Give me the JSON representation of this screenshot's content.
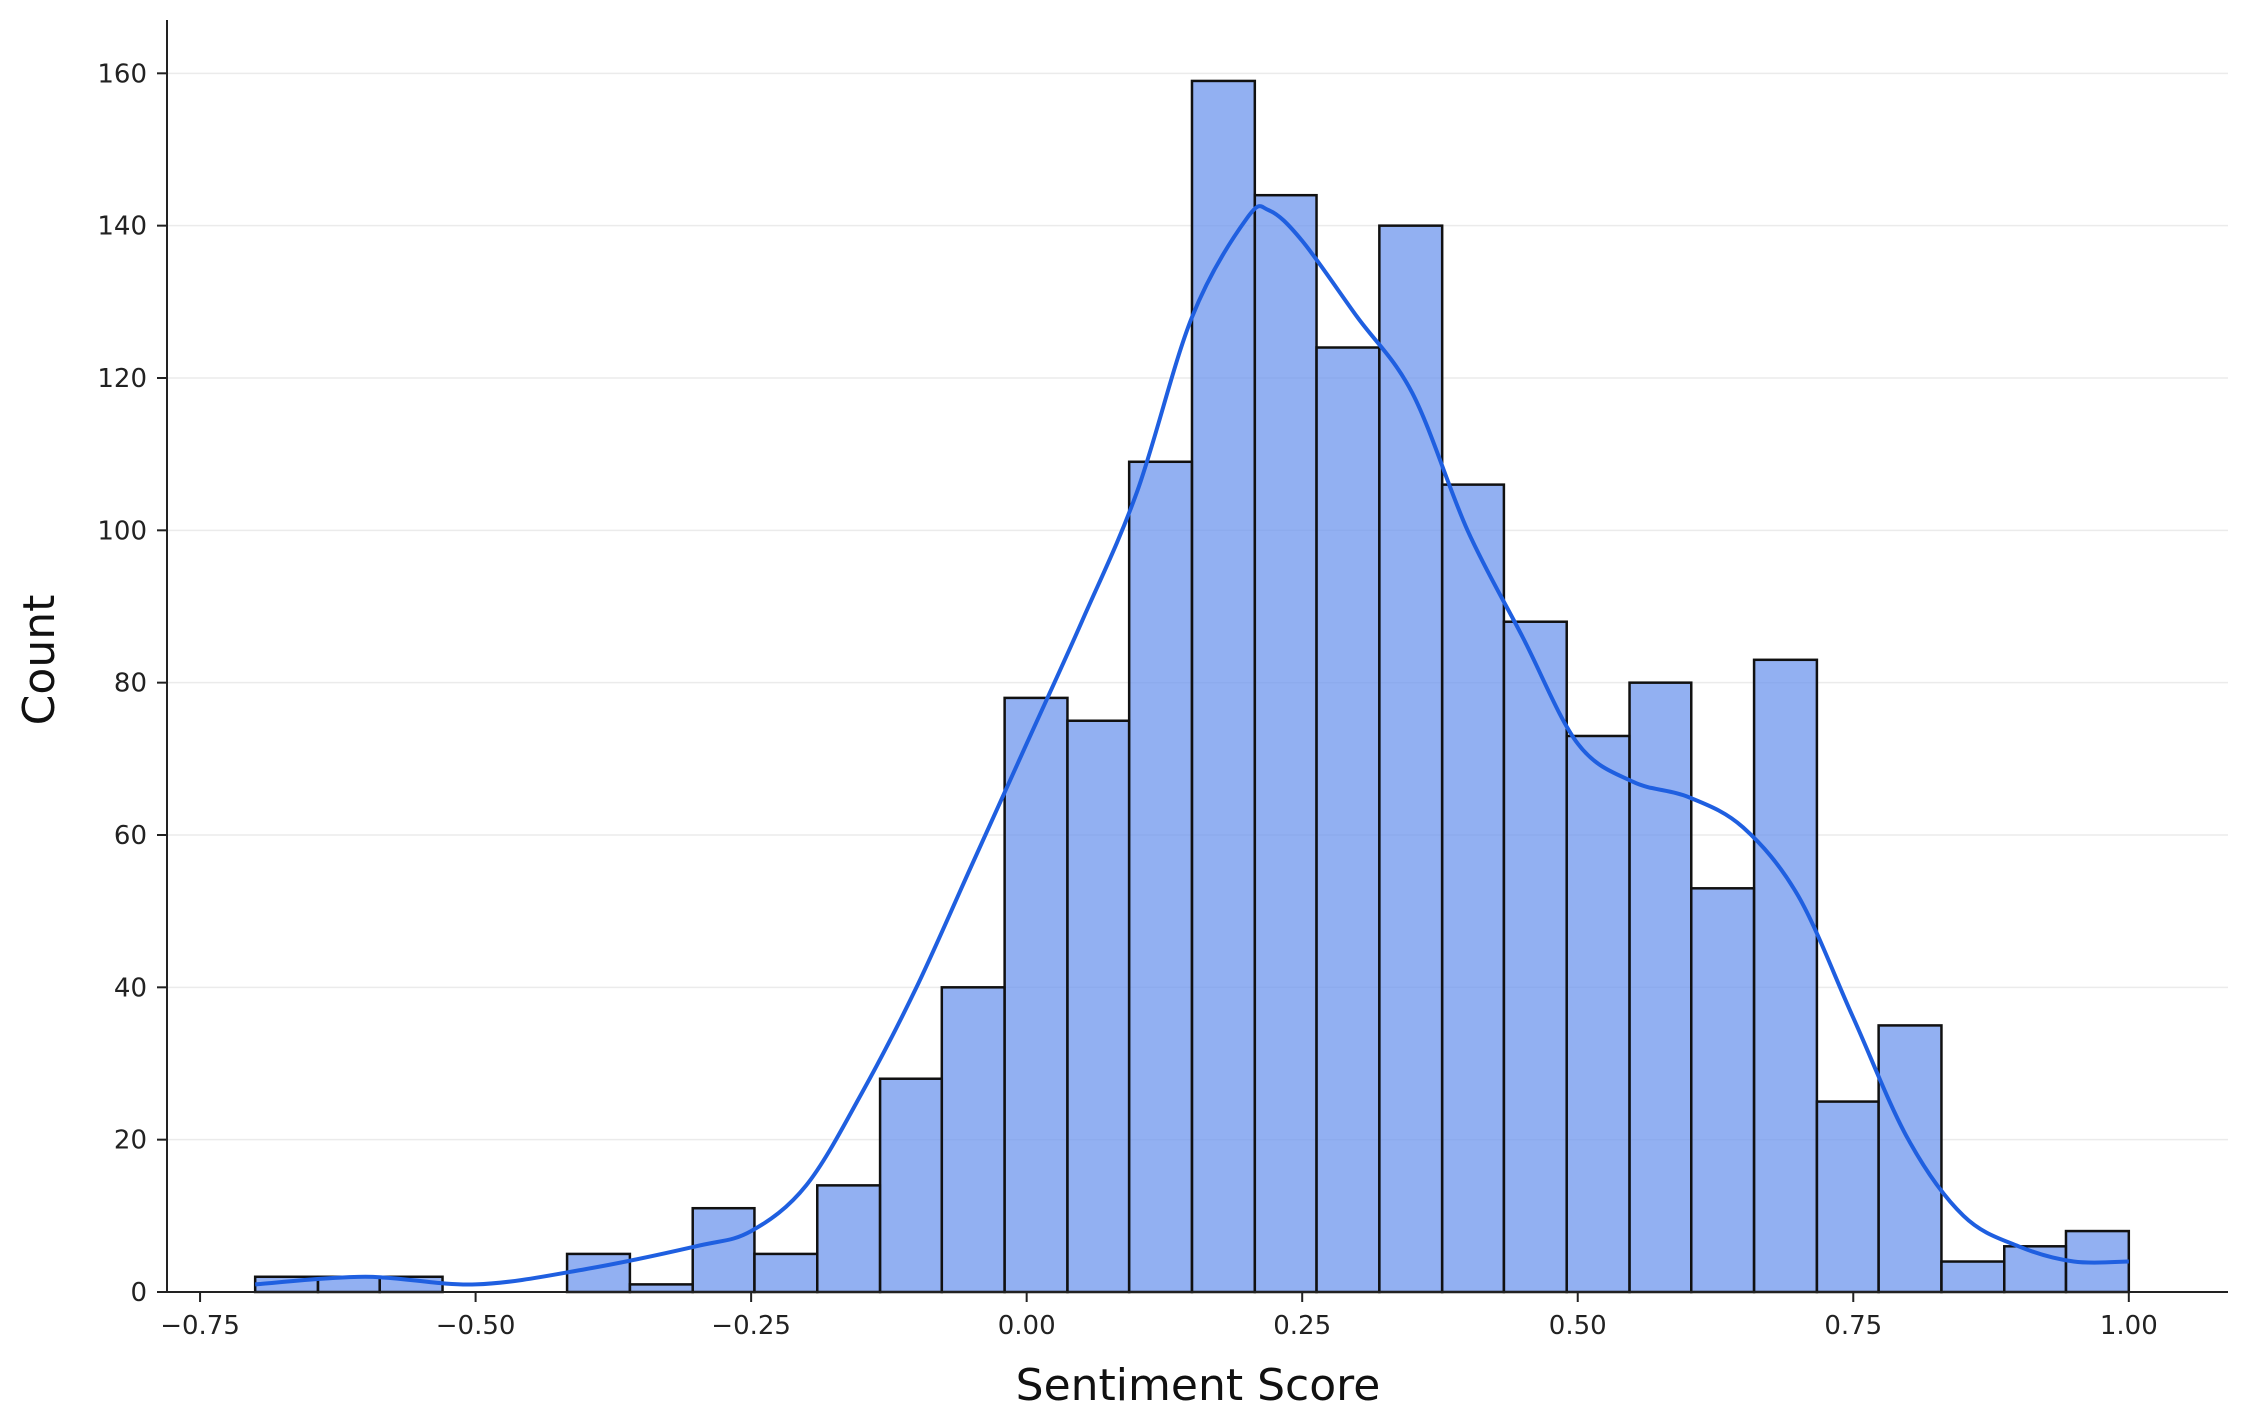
{
  "chart_data": {
    "type": "bar",
    "subtype": "histogram-with-kde",
    "title": "",
    "xlabel": "Sentiment Score",
    "ylabel": "Count",
    "xlim": [
      -0.78,
      1.09
    ],
    "ylim": [
      0,
      167
    ],
    "x_ticks": [
      -0.75,
      -0.5,
      -0.25,
      0.0,
      0.25,
      0.5,
      0.75,
      1.0
    ],
    "x_tick_labels": [
      "−0.75",
      "−0.50",
      "−0.25",
      "0.00",
      "0.25",
      "0.50",
      "0.75",
      "1.00"
    ],
    "y_ticks": [
      0,
      20,
      40,
      60,
      80,
      100,
      120,
      140,
      160
    ],
    "y_tick_labels": [
      "0",
      "20",
      "40",
      "60",
      "80",
      "100",
      "120",
      "140",
      "160"
    ],
    "grid": "horizontal",
    "bar_fill": "#6d95ed",
    "bar_edge": "#111111",
    "kde_color": "#1f5fe0",
    "bin_start": -0.7,
    "bin_width": 0.05667,
    "bins": [
      {
        "x0": -0.7,
        "x1": -0.643,
        "count": 2
      },
      {
        "x0": -0.643,
        "x1": -0.587,
        "count": 2
      },
      {
        "x0": -0.587,
        "x1": -0.53,
        "count": 2
      },
      {
        "x0": -0.53,
        "x1": -0.473,
        "count": 0
      },
      {
        "x0": -0.473,
        "x1": -0.417,
        "count": 0
      },
      {
        "x0": -0.417,
        "x1": -0.36,
        "count": 5
      },
      {
        "x0": -0.36,
        "x1": -0.303,
        "count": 1
      },
      {
        "x0": -0.303,
        "x1": -0.247,
        "count": 11
      },
      {
        "x0": -0.247,
        "x1": -0.19,
        "count": 5
      },
      {
        "x0": -0.19,
        "x1": -0.133,
        "count": 14
      },
      {
        "x0": -0.133,
        "x1": -0.077,
        "count": 28
      },
      {
        "x0": -0.077,
        "x1": -0.02,
        "count": 40
      },
      {
        "x0": -0.02,
        "x1": 0.037,
        "count": 78
      },
      {
        "x0": 0.037,
        "x1": 0.093,
        "count": 75
      },
      {
        "x0": 0.093,
        "x1": 0.15,
        "count": 109
      },
      {
        "x0": 0.15,
        "x1": 0.207,
        "count": 159
      },
      {
        "x0": 0.207,
        "x1": 0.263,
        "count": 144
      },
      {
        "x0": 0.263,
        "x1": 0.32,
        "count": 124
      },
      {
        "x0": 0.32,
        "x1": 0.377,
        "count": 140
      },
      {
        "x0": 0.377,
        "x1": 0.433,
        "count": 106
      },
      {
        "x0": 0.433,
        "x1": 0.49,
        "count": 88
      },
      {
        "x0": 0.49,
        "x1": 0.547,
        "count": 73
      },
      {
        "x0": 0.547,
        "x1": 0.603,
        "count": 80
      },
      {
        "x0": 0.603,
        "x1": 0.66,
        "count": 53
      },
      {
        "x0": 0.66,
        "x1": 0.717,
        "count": 83
      },
      {
        "x0": 0.717,
        "x1": 0.773,
        "count": 25
      },
      {
        "x0": 0.773,
        "x1": 0.83,
        "count": 35
      },
      {
        "x0": 0.83,
        "x1": 0.887,
        "count": 4
      },
      {
        "x0": 0.887,
        "x1": 0.943,
        "count": 6
      },
      {
        "x0": 0.943,
        "x1": 1.0,
        "count": 8
      }
    ],
    "kde": {
      "x": [
        -0.7,
        -0.6,
        -0.5,
        -0.4,
        -0.3,
        -0.25,
        -0.2,
        -0.15,
        -0.1,
        -0.05,
        0.0,
        0.05,
        0.1,
        0.15,
        0.2,
        0.22,
        0.25,
        0.3,
        0.35,
        0.4,
        0.45,
        0.5,
        0.55,
        0.6,
        0.65,
        0.7,
        0.75,
        0.8,
        0.85,
        0.9,
        0.95,
        1.0
      ],
      "y": [
        1,
        2,
        1,
        3,
        6,
        8,
        14,
        26,
        40,
        56,
        72,
        88,
        105,
        128,
        141,
        142,
        138,
        128,
        118,
        100,
        86,
        72,
        67,
        65,
        61,
        52,
        36,
        20,
        10,
        6,
        4,
        4
      ]
    }
  }
}
